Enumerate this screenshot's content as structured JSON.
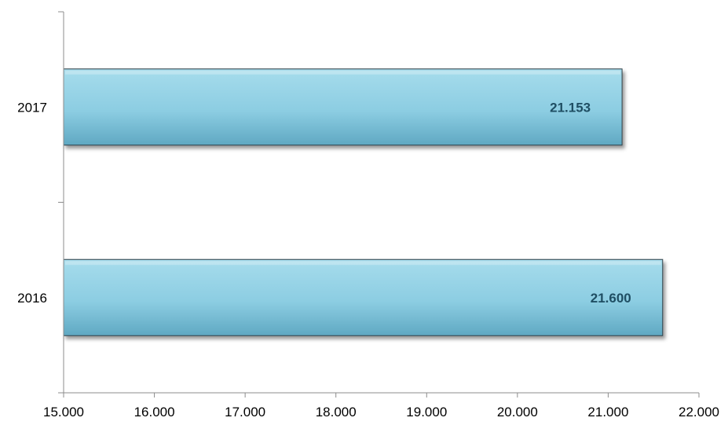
{
  "chart_data": {
    "type": "bar",
    "orientation": "horizontal",
    "categories": [
      "2016",
      "2017"
    ],
    "values": [
      21600,
      21153
    ],
    "value_labels": [
      "21.600",
      "21.153"
    ],
    "xlim": [
      15000,
      22000
    ],
    "x_tick_values": [
      15000,
      16000,
      17000,
      18000,
      19000,
      20000,
      21000,
      22000
    ],
    "x_tick_labels": [
      "15.000",
      "16.000",
      "17.000",
      "18.000",
      "19.000",
      "20.000",
      "21.000",
      "22.000"
    ],
    "title": "",
    "xlabel": "",
    "ylabel": "",
    "grid": false,
    "legend": "none",
    "colors": {
      "bar_top": "#a6dcec",
      "bar_mid": "#8ccde2",
      "bar_bottom": "#5fa8c2",
      "bar_edge": "#2f3f47",
      "label_text": "#1f4e63"
    }
  }
}
